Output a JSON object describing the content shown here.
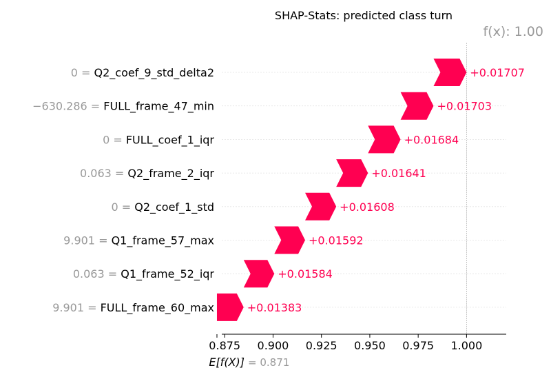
{
  "chart_data": {
    "type": "bar",
    "title": "SHAP-Stats: predicted class turn",
    "fx_label": "f(x): 1.00",
    "fx_value": 1.0,
    "base_label": "E[f(X)]",
    "base_value": 0.871,
    "base_value_label": "= 0.871",
    "xlim": [
      0.8735,
      1.0205
    ],
    "xticks": [
      0.875,
      0.9,
      0.925,
      0.95,
      0.975,
      1.0
    ],
    "xtick_labels": [
      "0.875",
      "0.900",
      "0.925",
      "0.950",
      "0.975",
      "1.000"
    ],
    "grid": true,
    "positive_color": "#ff0051",
    "features": [
      {
        "value": "0",
        "name": "Q2_coef_9_std_delta2",
        "start": 0.98293,
        "end": 1.0,
        "label": "+0.01707"
      },
      {
        "value": "−630.286",
        "name": "FULL_frame_47_min",
        "start": 0.9659,
        "end": 0.98293,
        "label": "+0.01703"
      },
      {
        "value": "0",
        "name": "FULL_coef_1_iqr",
        "start": 0.94906,
        "end": 0.9659,
        "label": "+0.01684"
      },
      {
        "value": "0.063",
        "name": "Q2_frame_2_iqr",
        "start": 0.93265,
        "end": 0.94906,
        "label": "+0.01641"
      },
      {
        "value": "0",
        "name": "Q2_coef_1_std",
        "start": 0.91657,
        "end": 0.93265,
        "label": "+0.01608"
      },
      {
        "value": "9.901",
        "name": "Q1_frame_57_max",
        "start": 0.90065,
        "end": 0.91657,
        "label": "+0.01592"
      },
      {
        "value": "0.063",
        "name": "Q1_frame_52_iqr",
        "start": 0.88481,
        "end": 0.90065,
        "label": "+0.01584"
      },
      {
        "value": "9.901",
        "name": "FULL_frame_60_max",
        "start": 0.871,
        "end": 0.88481,
        "label": "+0.01383"
      }
    ]
  }
}
